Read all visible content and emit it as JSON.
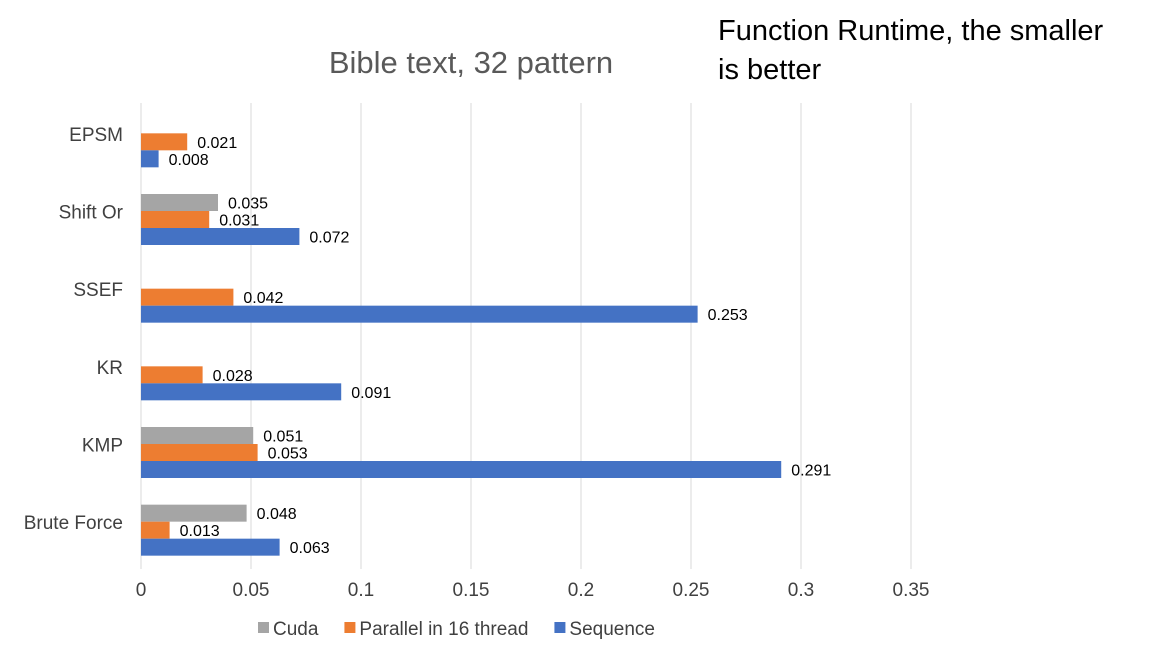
{
  "chart_data": {
    "type": "bar",
    "orientation": "horizontal",
    "title": "Bible text, 32 pattern",
    "annotation_lines": [
      "Function Runtime, the smaller",
      "is better"
    ],
    "categories": [
      "EPSM",
      "Shift Or",
      "SSEF",
      "KR",
      "KMP",
      "Brute Force"
    ],
    "series": [
      {
        "name": "Cuda",
        "color": "#a5a5a5",
        "values": [
          null,
          0.035,
          null,
          null,
          0.051,
          0.048
        ],
        "labels": [
          "",
          "0.035",
          "",
          "",
          "0.051",
          "0.048"
        ]
      },
      {
        "name": "Parallel in 16 thread",
        "color": "#ed7d31",
        "values": [
          0.021,
          0.031,
          0.042,
          0.028,
          0.053,
          0.013
        ],
        "labels": [
          "0.021",
          "0.031",
          "0.042",
          "0.028",
          "0.053",
          "0.013"
        ]
      },
      {
        "name": "Sequence",
        "color": "#4472c4",
        "values": [
          0.008,
          0.072,
          0.253,
          0.091,
          0.291,
          0.063
        ],
        "labels": [
          "0.008",
          "0.072",
          "0.253",
          "0.091",
          "0.291",
          "0.063"
        ]
      }
    ],
    "xlim": [
      0,
      0.35
    ],
    "xticks": [
      0,
      0.05,
      0.1,
      0.15,
      0.2,
      0.25,
      0.3,
      0.35
    ],
    "xtick_labels": [
      "0",
      "0.05",
      "0.1",
      "0.15",
      "0.2",
      "0.25",
      "0.3",
      "0.35"
    ],
    "grid": true,
    "legend_position": "bottom"
  }
}
